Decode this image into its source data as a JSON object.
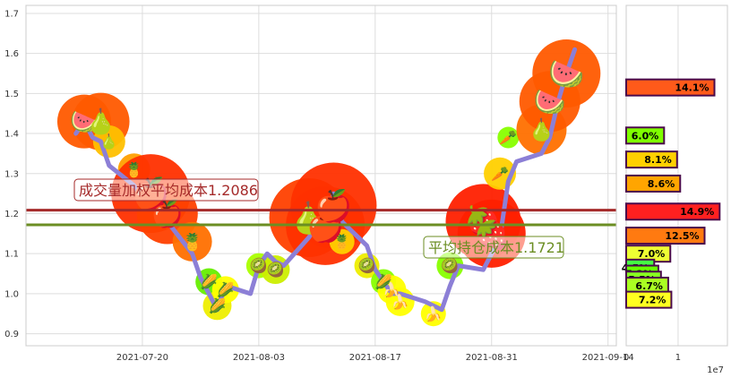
{
  "chart_data": [
    {
      "type": "line",
      "title": "",
      "xlabel": "",
      "ylabel": "",
      "x_ticks": [
        "2021-07-20",
        "2021-08-03",
        "2021-08-17",
        "2021-08-31",
        "2021-09-14"
      ],
      "y_ticks": [
        "0.9",
        "1.0",
        "1.1",
        "1.2",
        "1.3",
        "1.4",
        "1.5",
        "1.6",
        "1.7"
      ],
      "ylim": [
        0.87,
        1.72
      ],
      "xlim": [
        "2021-07-06",
        "2021-09-15"
      ],
      "grid": true,
      "series": [
        {
          "color": "#8c7fd6",
          "points": [
            [
              "2021-07-12",
              1.4
            ],
            [
              "2021-07-13",
              1.43
            ],
            [
              "2021-07-14",
              1.39
            ],
            [
              "2021-07-15",
              1.38
            ],
            [
              "2021-07-16",
              1.32
            ],
            [
              "2021-07-19",
              1.27
            ],
            [
              "2021-07-20",
              1.24
            ],
            [
              "2021-07-21",
              1.26
            ],
            [
              "2021-07-22",
              1.22
            ],
            [
              "2021-07-23",
              1.18
            ],
            [
              "2021-07-26",
              1.1
            ],
            [
              "2021-07-27",
              1.04
            ],
            [
              "2021-07-28",
              1.0
            ],
            [
              "2021-07-29",
              0.96
            ],
            [
              "2021-07-30",
              1.02
            ],
            [
              "2021-08-02",
              1.0
            ],
            [
              "2021-08-03",
              1.07
            ],
            [
              "2021-08-04",
              1.1
            ],
            [
              "2021-08-05",
              1.08
            ],
            [
              "2021-08-06",
              1.07
            ],
            [
              "2021-08-09",
              1.14
            ],
            [
              "2021-08-10",
              1.17
            ],
            [
              "2021-08-11",
              1.15
            ],
            [
              "2021-08-12",
              1.25
            ],
            [
              "2021-08-13",
              1.18
            ],
            [
              "2021-08-16",
              1.12
            ],
            [
              "2021-08-17",
              1.06
            ],
            [
              "2021-08-18",
              1.03
            ],
            [
              "2021-08-19",
              1.0
            ],
            [
              "2021-08-20",
              1.0
            ],
            [
              "2021-08-23",
              0.98
            ],
            [
              "2021-08-24",
              0.97
            ],
            [
              "2021-08-25",
              0.96
            ],
            [
              "2021-08-26",
              1.02
            ],
            [
              "2021-08-27",
              1.07
            ],
            [
              "2021-08-30",
              1.06
            ],
            [
              "2021-08-31",
              1.1
            ],
            [
              "2021-09-01",
              1.14
            ],
            [
              "2021-09-02",
              1.28
            ],
            [
              "2021-09-03",
              1.33
            ],
            [
              "2021-09-06",
              1.35
            ],
            [
              "2021-09-07",
              1.39
            ],
            [
              "2021-09-08",
              1.48
            ],
            [
              "2021-09-09",
              1.55
            ],
            [
              "2021-09-10",
              1.61
            ]
          ]
        }
      ],
      "horizontal_lines": [
        {
          "y": 1.2086,
          "color": "#a52a2a",
          "label": "成交量加权平均成本1.2086"
        },
        {
          "y": 1.1721,
          "color": "#6b8e23",
          "label": "平均持仓成本1.1721"
        }
      ],
      "markers": [
        {
          "date": "2021-07-13",
          "y": 1.43,
          "color": "#ff5a00",
          "size": 30,
          "emoji": "🍉"
        },
        {
          "date": "2021-07-15",
          "y": 1.43,
          "color": "#ff5a00",
          "size": 32,
          "emoji": "🍐"
        },
        {
          "date": "2021-07-16",
          "y": 1.38,
          "color": "#ffc000",
          "size": 18,
          "emoji": "🍐"
        },
        {
          "date": "2021-07-19",
          "y": 1.31,
          "color": "#ffa000",
          "size": 18,
          "emoji": "🍍"
        },
        {
          "date": "2021-07-21",
          "y": 1.25,
          "color": "#ff3000",
          "size": 44,
          "emoji": "🍎"
        },
        {
          "date": "2021-07-23",
          "y": 1.2,
          "color": "#ff4000",
          "size": 34,
          "emoji": "🍎"
        },
        {
          "date": "2021-07-26",
          "y": 1.13,
          "color": "#ff7000",
          "size": 22,
          "emoji": "🍍"
        },
        {
          "date": "2021-07-28",
          "y": 1.03,
          "color": "#66ee00",
          "size": 15,
          "emoji": "🌽"
        },
        {
          "date": "2021-07-29",
          "y": 0.97,
          "color": "#eeee00",
          "size": 16,
          "emoji": "🌽"
        },
        {
          "date": "2021-07-30",
          "y": 1.01,
          "color": "#ffff00",
          "size": 15,
          "emoji": "🌽"
        },
        {
          "date": "2021-08-03",
          "y": 1.07,
          "color": "#aaff00",
          "size": 14,
          "emoji": "🥝"
        },
        {
          "date": "2021-08-05",
          "y": 1.06,
          "color": "#ccee00",
          "size": 16,
          "emoji": "🥝"
        },
        {
          "date": "2021-08-09",
          "y": 1.19,
          "color": "#ff4000",
          "size": 44,
          "emoji": "🍐"
        },
        {
          "date": "2021-08-11",
          "y": 1.17,
          "color": "#ff3000",
          "size": 44,
          "emoji": "🍎"
        },
        {
          "date": "2021-08-12",
          "y": 1.22,
          "color": "#ff3000",
          "size": 48,
          "emoji": "🍎"
        },
        {
          "date": "2021-08-13",
          "y": 1.13,
          "color": "#ffd000",
          "size": 14,
          "emoji": "🍍"
        },
        {
          "date": "2021-08-16",
          "y": 1.07,
          "color": "#eeee00",
          "size": 14,
          "emoji": "🥝"
        },
        {
          "date": "2021-08-18",
          "y": 1.03,
          "color": "#88ff00",
          "size": 14,
          "emoji": "🌽"
        },
        {
          "date": "2021-08-19",
          "y": 1.01,
          "color": "#ffff00",
          "size": 16,
          "emoji": "🍌"
        },
        {
          "date": "2021-08-20",
          "y": 0.98,
          "color": "#ffff00",
          "size": 16,
          "emoji": "🍌"
        },
        {
          "date": "2021-08-24",
          "y": 0.95,
          "color": "#ffff00",
          "size": 14,
          "emoji": "🍌"
        },
        {
          "date": "2021-08-26",
          "y": 1.07,
          "color": "#88ff00",
          "size": 15,
          "emoji": "🥝"
        },
        {
          "date": "2021-08-30",
          "y": 1.18,
          "color": "#ff2000",
          "size": 42,
          "emoji": "🍓"
        },
        {
          "date": "2021-08-31",
          "y": 1.15,
          "color": "#ff2000",
          "size": 38,
          "emoji": "🍓"
        },
        {
          "date": "2021-09-01",
          "y": 1.3,
          "color": "#ffd000",
          "size": 18,
          "emoji": "🥕"
        },
        {
          "date": "2021-09-02",
          "y": 1.39,
          "color": "#88ff00",
          "size": 12,
          "emoji": "🥕"
        },
        {
          "date": "2021-09-06",
          "y": 1.41,
          "color": "#ff7000",
          "size": 28,
          "emoji": "🍐"
        },
        {
          "date": "2021-09-07",
          "y": 1.48,
          "color": "#ff5a00",
          "size": 34,
          "emoji": "🍉"
        },
        {
          "date": "2021-09-09",
          "y": 1.55,
          "color": "#ff5a00",
          "size": 38,
          "emoji": "🍉"
        }
      ]
    },
    {
      "type": "bar",
      "orientation": "horizontal",
      "x_ticks": [
        "0",
        "1"
      ],
      "x_unit": "1e7",
      "xlim": [
        0,
        1.95
      ],
      "ylim": [
        0.87,
        1.72
      ],
      "bars": [
        {
          "y": 1.515,
          "value": 1.7,
          "label": "14.1%",
          "color": "#ff5a1a"
        },
        {
          "y": 1.395,
          "value": 0.73,
          "label": "6.0%",
          "color": "#7fff00"
        },
        {
          "y": 1.335,
          "value": 0.98,
          "label": "8.1%",
          "color": "#ffd000"
        },
        {
          "y": 1.275,
          "value": 1.04,
          "label": "8.6%",
          "color": "#ffa500"
        },
        {
          "y": 1.205,
          "value": 1.8,
          "label": "14.9%",
          "color": "#ff2020"
        },
        {
          "y": 1.145,
          "value": 1.51,
          "label": "12.5%",
          "color": "#ff7a10"
        },
        {
          "y": 1.1,
          "value": 0.85,
          "label": "7.0%",
          "color": "#eeff33"
        },
        {
          "y": 1.065,
          "value": 0.54,
          "label": "4.5%",
          "color": "#44ff44"
        },
        {
          "y": 1.05,
          "value": 0.62,
          "label": "5.2%",
          "color": "#66ff00"
        },
        {
          "y": 1.035,
          "value": 0.67,
          "label": "5.5%",
          "color": "#88ff22"
        },
        {
          "y": 1.02,
          "value": 0.81,
          "label": "6.7%",
          "color": "#aaff22"
        },
        {
          "y": 0.985,
          "value": 0.87,
          "label": "7.2%",
          "color": "#ffff20"
        }
      ]
    }
  ]
}
